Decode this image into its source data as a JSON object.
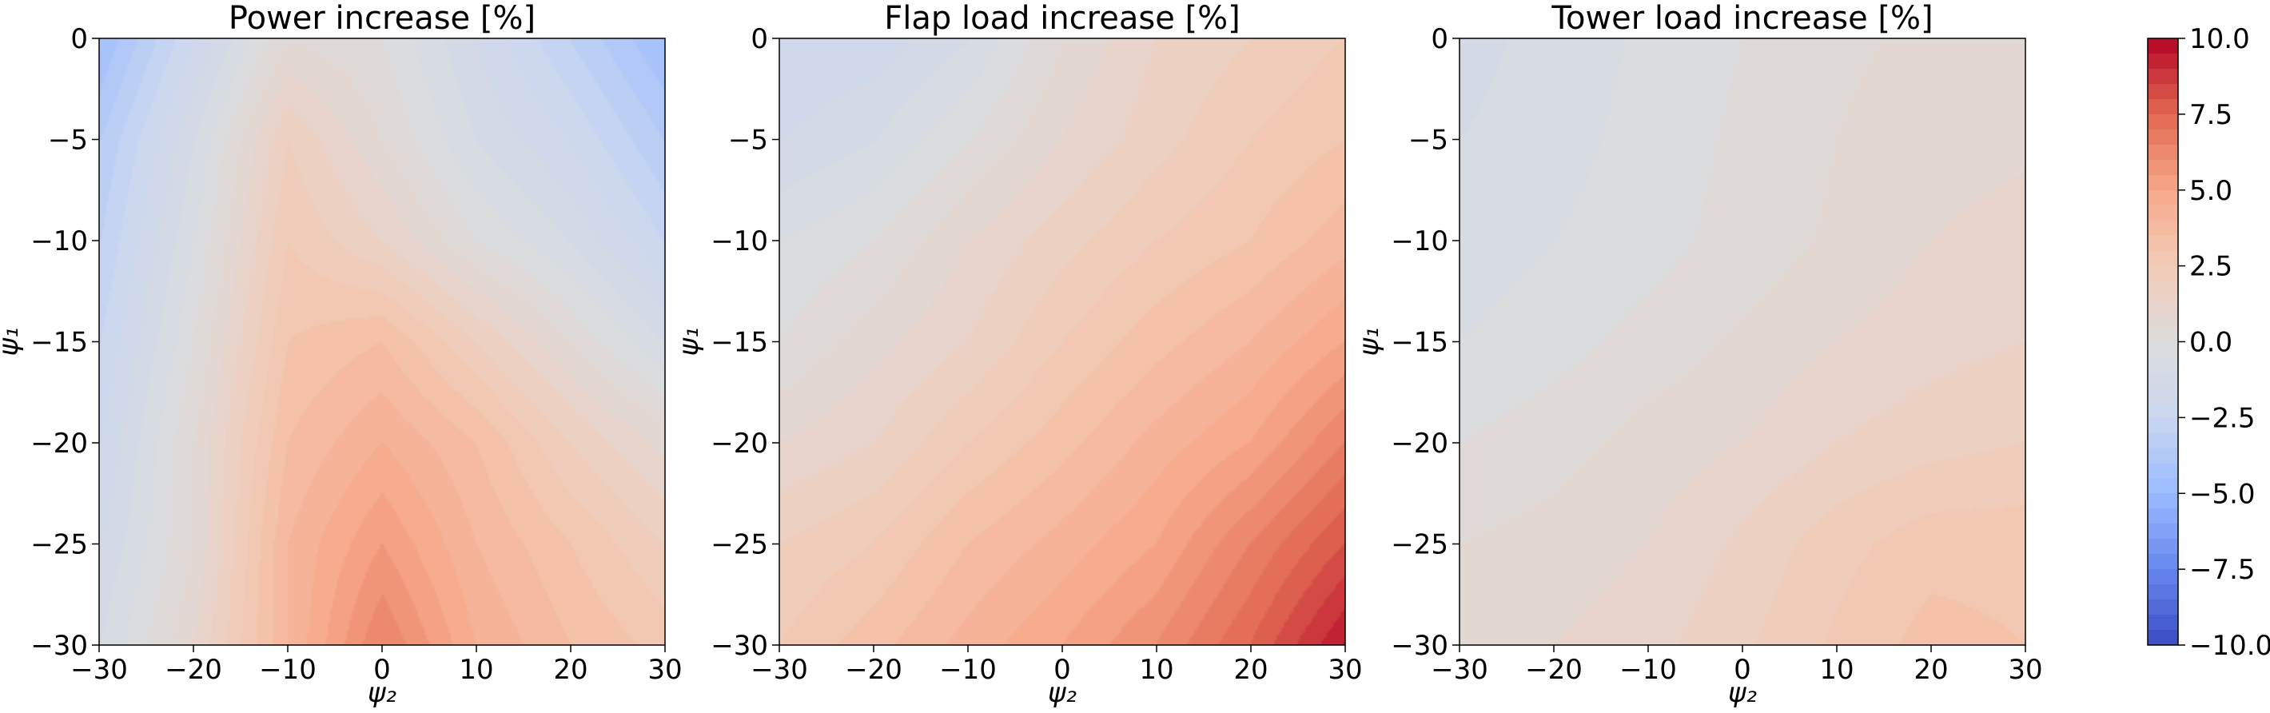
{
  "colors": {
    "colormap": "coolwarm",
    "stops": [
      "#3b4cc0",
      "#6788ee",
      "#9abbff",
      "#c9d7f0",
      "#dddcdc",
      "#f2cbb7",
      "#f7a889",
      "#e26952",
      "#b40426"
    ],
    "frame": "#000000"
  },
  "chart_data": [
    {
      "type": "heatmap",
      "style": "filled-contour",
      "title": "Power increase [%]",
      "xlabel": "ψ₂",
      "ylabel": "ψ₁",
      "xlim": [
        -30,
        30
      ],
      "ylim": [
        -30,
        0
      ],
      "xticks": [
        "−30",
        "−20",
        "−10",
        "0",
        "10",
        "20",
        "30"
      ],
      "yticks": [
        "0",
        "−5",
        "−10",
        "−15",
        "−20",
        "−25",
        "−30"
      ],
      "x": [
        -30,
        -20,
        -10,
        0,
        10,
        20,
        30
      ],
      "y": [
        0,
        -5,
        -10,
        -15,
        -20,
        -25,
        -30
      ],
      "z": [
        [
          -4.5,
          -2.0,
          0.5,
          0.0,
          -1.5,
          -3.0,
          -4.5
        ],
        [
          -3.5,
          -1.0,
          2.0,
          0.5,
          -1.0,
          -2.0,
          -3.5
        ],
        [
          -3.0,
          -0.5,
          2.5,
          1.5,
          0.0,
          -1.0,
          -2.5
        ],
        [
          -2.5,
          0.0,
          3.0,
          3.5,
          2.0,
          0.5,
          -1.0
        ],
        [
          -2.0,
          0.5,
          3.5,
          4.5,
          3.5,
          2.0,
          0.8
        ],
        [
          -1.5,
          0.5,
          4.0,
          5.5,
          4.0,
          3.0,
          2.0
        ],
        [
          -1.0,
          1.0,
          4.0,
          6.5,
          4.5,
          3.5,
          2.8
        ]
      ]
    },
    {
      "type": "heatmap",
      "style": "filled-contour",
      "title": "Flap load increase [%]",
      "xlabel": "ψ₂",
      "ylabel": "ψ₁",
      "xlim": [
        -30,
        30
      ],
      "ylim": [
        -30,
        0
      ],
      "xticks": [
        "−30",
        "−20",
        "−10",
        "0",
        "10",
        "20",
        "30"
      ],
      "yticks": [
        "0",
        "−5",
        "−10",
        "−15",
        "−20",
        "−25",
        "−30"
      ],
      "x": [
        -30,
        -20,
        -10,
        0,
        10,
        20,
        30
      ],
      "y": [
        0,
        -5,
        -10,
        -15,
        -20,
        -25,
        -30
      ],
      "z": [
        [
          -2.0,
          -1.8,
          -1.0,
          0.5,
          1.5,
          2.0,
          2.5
        ],
        [
          -1.5,
          -1.0,
          0.0,
          1.0,
          1.8,
          2.5,
          3.0
        ],
        [
          -0.5,
          0.0,
          1.0,
          1.8,
          2.5,
          3.0,
          3.8
        ],
        [
          0.0,
          0.8,
          1.5,
          2.5,
          3.3,
          4.0,
          5.0
        ],
        [
          1.0,
          1.5,
          2.5,
          3.3,
          4.2,
          5.0,
          6.5
        ],
        [
          2.0,
          2.5,
          3.5,
          4.2,
          5.0,
          6.5,
          8.0
        ],
        [
          2.5,
          3.3,
          4.2,
          5.0,
          6.0,
          7.5,
          9.5
        ]
      ]
    },
    {
      "type": "heatmap",
      "style": "filled-contour",
      "title": "Tower load increase [%]",
      "xlabel": "ψ₂",
      "ylabel": "ψ₁",
      "xlim": [
        -30,
        30
      ],
      "ylim": [
        -30,
        0
      ],
      "xticks": [
        "−30",
        "−20",
        "−10",
        "0",
        "10",
        "20",
        "30"
      ],
      "yticks": [
        "0",
        "−5",
        "−10",
        "−15",
        "−20",
        "−25",
        "−30"
      ],
      "x": [
        -30,
        -20,
        -10,
        0,
        10,
        20,
        30
      ],
      "y": [
        0,
        -5,
        -10,
        -15,
        -20,
        -25,
        -30
      ],
      "z": [
        [
          -1.2,
          -0.8,
          -0.4,
          0.0,
          0.4,
          0.6,
          0.7
        ],
        [
          -1.0,
          -0.7,
          -0.3,
          0.1,
          0.5,
          0.8,
          0.9
        ],
        [
          -0.8,
          -0.5,
          -0.2,
          0.2,
          0.6,
          1.0,
          1.2
        ],
        [
          -0.5,
          -0.2,
          0.2,
          0.6,
          1.0,
          1.3,
          1.5
        ],
        [
          0.0,
          0.3,
          0.7,
          1.0,
          1.5,
          1.8,
          2.0
        ],
        [
          0.5,
          0.7,
          1.0,
          1.6,
          2.3,
          2.8,
          2.8
        ],
        [
          0.8,
          1.0,
          1.3,
          1.9,
          2.6,
          3.2,
          3.0
        ]
      ]
    }
  ],
  "colorbar": {
    "vmin": -10,
    "vmax": 10,
    "levels": 40,
    "ticks": [
      "−10.0",
      "−7.5",
      "−5.0",
      "−2.5",
      "0.0",
      "2.5",
      "5.0",
      "7.5",
      "10.0"
    ],
    "tick_values": [
      -10,
      -7.5,
      -5,
      -2.5,
      0,
      2.5,
      5,
      7.5,
      10
    ]
  }
}
